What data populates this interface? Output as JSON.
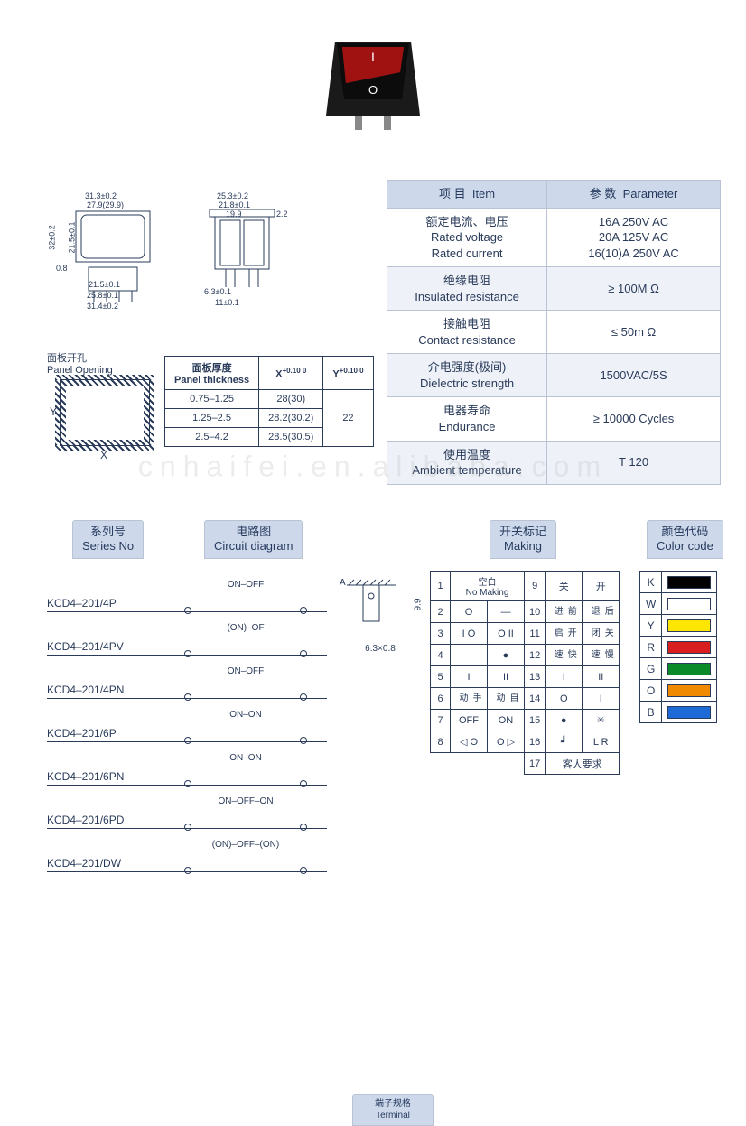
{
  "watermark": "cnhaifei.en.alibaba.com",
  "product": {
    "body_color": "#1a1a1a",
    "rocker_color": "#c81818",
    "mark_on": "I",
    "mark_off": "O"
  },
  "dimensions": {
    "front": {
      "w_outer": "31.3±0.2",
      "w_hole": "27.9(29.9)",
      "h_outer": "32±0.2",
      "h_cut": "21.5±0.1",
      "flange": "0.8",
      "body_w1": "21.5±0.1",
      "body_w2": "25.8±0.1",
      "base_w": "31.4±0.2"
    },
    "side": {
      "w_outer": "25.3±0.2",
      "w_body": "21.8±0.1",
      "inner_w": "19.9",
      "top_off": "2.2",
      "pin_w": "6.3±0.1",
      "pin_pitch": "11±0.1"
    }
  },
  "panel_opening": {
    "title_cn": "面板开孔",
    "title_en": "Panel Opening",
    "x": "X",
    "y": "Y"
  },
  "panel_thickness": {
    "head_cn": "面板厚度",
    "head_en": "Panel thickness",
    "col_x": "X",
    "col_y": "Y",
    "tol": "+0.10\n 0",
    "rows": [
      {
        "t": "0.75–1.25",
        "x": "28(30)",
        "y": ""
      },
      {
        "t": "1.25–2.5",
        "x": "28.2(30.2)",
        "y": "22"
      },
      {
        "t": "2.5–4.2",
        "x": "28.5(30.5)",
        "y": ""
      }
    ]
  },
  "spec": {
    "head_item_cn": "项 目",
    "head_item_en": "Item",
    "head_param_cn": "参 数",
    "head_param_en": "Parameter",
    "rows": [
      {
        "cn": "额定电流、电压",
        "en": "Rated voltage\nRated current",
        "val": "16A  250V AC\n20A  125V AC\n16(10)A  250V AC"
      },
      {
        "cn": "绝缘电阻",
        "en": "Insulated resistance",
        "val": "≥ 100M Ω"
      },
      {
        "cn": "接触电阻",
        "en": "Contact resistance",
        "val": "≤ 50m Ω"
      },
      {
        "cn": "介电强度(极间)",
        "en": "Dielectric strength",
        "val": "1500VAC/5S"
      },
      {
        "cn": "电器寿命",
        "en": "Endurance",
        "val": "≥ 10000 Cycles"
      },
      {
        "cn": "使用温度",
        "en": "Ambient temperature",
        "val": "T 120"
      }
    ]
  },
  "headers2": {
    "series_cn": "系列号",
    "series_en": "Series No",
    "circuit_cn": "电路图",
    "circuit_en": "Circuit diagram",
    "terminal_cn": "端子规格",
    "terminal_en": "Terminal",
    "making_cn": "开关标记",
    "making_en": "Making",
    "color_cn": "颜色代码",
    "color_en": "Color code"
  },
  "series": [
    {
      "no": "KCD4–201/4P",
      "state": "ON–OFF"
    },
    {
      "no": "KCD4–201/4PV",
      "state": "(ON)–OF"
    },
    {
      "no": "KCD4–201/4PN",
      "state": "ON–OFF"
    },
    {
      "no": "KCD4–201/6P",
      "state": "ON–ON"
    },
    {
      "no": "KCD4–201/6PN",
      "state": "ON–ON"
    },
    {
      "no": "KCD4–201/6PD",
      "state": "ON–OFF–ON"
    },
    {
      "no": "KCD4–201/DW",
      "state": "(ON)–OFF–(ON)"
    }
  ],
  "terminal": {
    "label_a": "A",
    "h": "9.9",
    "dim": "6.3×0.8"
  },
  "making": {
    "rows": [
      {
        "n": "1",
        "a": "空白",
        "b": "No Making",
        "n2": "9",
        "c": "关",
        "d": "开"
      },
      {
        "n": "2",
        "a": "O",
        "b": "—",
        "n2": "10",
        "c": "前进",
        "d": "后退"
      },
      {
        "n": "3",
        "a": "I  O",
        "b": "O  II",
        "n2": "11",
        "c": "开启",
        "d": "关闭"
      },
      {
        "n": "4",
        "a": "",
        "b": "●",
        "n2": "12",
        "c": "快速",
        "d": "慢速"
      },
      {
        "n": "5",
        "a": "I",
        "b": "II",
        "n2": "13",
        "c": "I",
        "d": "II"
      },
      {
        "n": "6",
        "a": "手动",
        "b": "自动",
        "n2": "14",
        "c": "O",
        "d": "I"
      },
      {
        "n": "7",
        "a": "OFF",
        "b": "ON",
        "n2": "15",
        "c": "●",
        "d": "✳"
      },
      {
        "n": "8",
        "a": "◁  O",
        "b": "O  ▷",
        "n2": "16",
        "c": "┛",
        "d": "L   R"
      },
      {
        "n": "",
        "a": "",
        "b": "",
        "n2": "17",
        "c": "客人要求",
        "d": ""
      }
    ]
  },
  "colors": [
    {
      "code": "K",
      "hex": "#000000"
    },
    {
      "code": "W",
      "hex": "#ffffff"
    },
    {
      "code": "Y",
      "hex": "#ffe600"
    },
    {
      "code": "R",
      "hex": "#d81e1e"
    },
    {
      "code": "G",
      "hex": "#0b8a2a"
    },
    {
      "code": "O",
      "hex": "#f08a00"
    },
    {
      "code": "B",
      "hex": "#1e6bd8"
    }
  ]
}
